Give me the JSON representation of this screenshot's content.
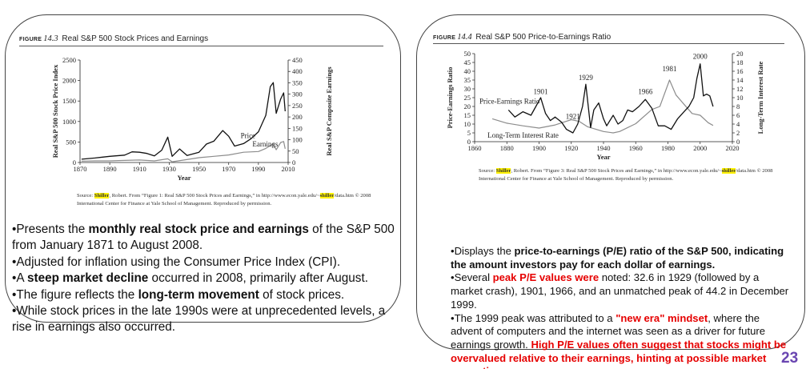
{
  "left": {
    "figure_word": "FIGURE",
    "figure_number": "14.3",
    "figure_title": "Real S&P 500 Stock Prices and Earnings",
    "source": {
      "prefix": "Source: ",
      "highlight1": "Shiller",
      "mid": ", Robert. From “Figure 1: Real S&P 500 Stock Prices and Earnings,” in http://www.econ.yale.edu/~",
      "highlight2": "shiller",
      "suffix": "/data.htm © 2008 International Center for Finance at Yale School of Management. Reproduced by permission."
    },
    "bullets": [
      {
        "pre": "•Presents the ",
        "bold": "monthly real stock price and earnings",
        "post": " of the S&P 500 from January 1871 to August 2008."
      },
      {
        "pre": "•Adjusted for inflation using the Consumer Price Index (CPI).",
        "bold": "",
        "post": ""
      },
      {
        "pre": "•A ",
        "bold": "steep market decline",
        "post": " occurred in 2008, primarily after August."
      },
      {
        "pre": "•The figure reflects the ",
        "bold": "long-term movement",
        "post": " of stock prices."
      },
      {
        "pre": "•While stock prices in the late 1990s were at unprecedented levels, a rise in earnings also occurred.",
        "bold": "",
        "post": ""
      }
    ]
  },
  "right": {
    "figure_word": "FIGURE",
    "figure_number": "14.4",
    "figure_title": "Real S&P 500 Price-to-Earnings Ratio",
    "source": {
      "prefix": "Source: ",
      "highlight1": "Shiller",
      "mid": ", Robert. From “Figure 3: Real S&P 500 Stock Prices and Earnings,” in http://www.econ.yale.edu/~",
      "highlight2": "shiller",
      "suffix": "/data.htm © 2008 International Center for Finance at Yale School of Management. Reproduced by permission."
    },
    "bullets": {
      "p1_pre": "•Displays the ",
      "p1_bold": "price-to-earnings (P/E) ratio of the S&P 500, indicating the amount investors pay for each dollar of earnings.",
      "p2_pre": "•Several ",
      "p2_red": "peak P/E values were",
      "p2_post": " noted: 32.6 in 1929 (followed by a market crash), 1901, 1966, and an unmatched peak of 44.2 in December 1999.",
      "p3_pre": "•The 1999 peak was attributed to a ",
      "p3_red": "\"new era\" mindset",
      "p3_mid": ", where the advent of computers and the internet was seen as a driver for future earnings growth. ",
      "p3_red2": "High P/E values often suggest that stocks might be overvalued relative to their earnings, hinting at possible market corrections"
    }
  },
  "page_number": "23",
  "colors": {
    "black_series": "#111111",
    "gray_series": "#8c8c8c",
    "highlight": "#fff200",
    "red_text": "#e60000",
    "page_number": "#6a46b1"
  },
  "chart_data": [
    {
      "type": "line",
      "title": "Real S&P 500 Stock Prices and Earnings",
      "xlabel": "Year",
      "ylabel": "Real S&P 500 Stock Price Index",
      "ylabel_right": "Real S&P Composite Earnings",
      "xlim": [
        1870,
        2010
      ],
      "ylim": [
        0,
        2500
      ],
      "ylim_right": [
        0,
        450
      ],
      "xticks": [
        1870,
        1890,
        1910,
        1930,
        1950,
        1970,
        1990,
        2010
      ],
      "yticks": [
        0,
        500,
        1000,
        1500,
        2000,
        2500
      ],
      "yticks_right": [
        0,
        50,
        100,
        150,
        200,
        250,
        300,
        350,
        400,
        450
      ],
      "series": [
        {
          "name": "Price",
          "axis": "left",
          "color": "#111111",
          "x": [
            1871,
            1880,
            1890,
            1900,
            1905,
            1910,
            1915,
            1920,
            1925,
            1929,
            1932,
            1937,
            1942,
            1950,
            1955,
            1960,
            1966,
            1970,
            1974,
            1980,
            1985,
            1990,
            1995,
            1998,
            2000,
            2002,
            2005,
            2007,
            2008
          ],
          "y": [
            80,
            110,
            150,
            180,
            260,
            250,
            220,
            160,
            300,
            620,
            150,
            330,
            170,
            250,
            450,
            520,
            780,
            640,
            400,
            460,
            580,
            750,
            1150,
            1850,
            1950,
            1200,
            1550,
            1700,
            1250
          ]
        },
        {
          "name": "Earnings",
          "axis": "right",
          "color": "#8c8c8c",
          "x": [
            1871,
            1880,
            1890,
            1900,
            1910,
            1920,
            1929,
            1932,
            1940,
            1950,
            1960,
            1970,
            1980,
            1990,
            1995,
            2000,
            2002,
            2005,
            2007,
            2008
          ],
          "y": [
            6,
            7,
            7,
            9,
            11,
            7,
            16,
            3,
            11,
            21,
            27,
            33,
            45,
            48,
            62,
            82,
            56,
            88,
            92,
            60
          ]
        }
      ]
    },
    {
      "type": "line",
      "title": "Real S&P 500 Price-to-Earnings Ratio",
      "xlabel": "Year",
      "ylabel": "Price-Earnings Ratio",
      "ylabel_right": "Long-Term Interest Rate",
      "xlim": [
        1860,
        2020
      ],
      "ylim": [
        0,
        50
      ],
      "ylim_right": [
        0,
        20
      ],
      "xticks": [
        1860,
        1880,
        1900,
        1920,
        1940,
        1960,
        1980,
        2000,
        2020
      ],
      "yticks": [
        0,
        5,
        10,
        15,
        20,
        25,
        30,
        35,
        40,
        45,
        50
      ],
      "yticks_right": [
        0,
        2,
        4,
        6,
        8,
        10,
        12,
        14,
        16,
        18,
        20
      ],
      "annotations": [
        "1901",
        "1929",
        "1921",
        "1966",
        "1981",
        "2000",
        "Price-Earnings Ratio",
        "Long-Term Interest Rate"
      ],
      "series": [
        {
          "name": "Price-Earnings Ratio",
          "axis": "left",
          "color": "#111111",
          "x": [
            1881,
            1885,
            1890,
            1895,
            1898,
            1901,
            1904,
            1907,
            1910,
            1914,
            1917,
            1921,
            1924,
            1927,
            1929,
            1932,
            1934,
            1937,
            1940,
            1942,
            1946,
            1949,
            1952,
            1955,
            1958,
            1962,
            1966,
            1970,
            1974,
            1978,
            1982,
            1986,
            1990,
            1993,
            1996,
            1998,
            2000,
            2002,
            2004,
            2006,
            2008
          ],
          "y": [
            18,
            14,
            17,
            15,
            20,
            25,
            16,
            12,
            14,
            11,
            7,
            5,
            10,
            20,
            32.6,
            8,
            18,
            22,
            13,
            9,
            15,
            10,
            12,
            18,
            17,
            20,
            24,
            19,
            9,
            9,
            7,
            13,
            17,
            20,
            25,
            36,
            44.2,
            26,
            27,
            26,
            20
          ]
        },
        {
          "name": "Long-Term Interest Rate",
          "axis": "right",
          "color": "#8c8c8c",
          "x": [
            1871,
            1880,
            1890,
            1900,
            1910,
            1920,
            1925,
            1930,
            1940,
            1946,
            1950,
            1960,
            1970,
            1975,
            1981,
            1985,
            1990,
            1995,
            2000,
            2005,
            2008
          ],
          "y": [
            5.2,
            4.2,
            3.6,
            3.1,
            3.8,
            5.0,
            4.6,
            3.4,
            2.3,
            2.0,
            2.3,
            4.1,
            7.3,
            8.0,
            14.0,
            10.6,
            8.5,
            6.4,
            6.0,
            4.3,
            3.7
          ]
        }
      ]
    }
  ]
}
